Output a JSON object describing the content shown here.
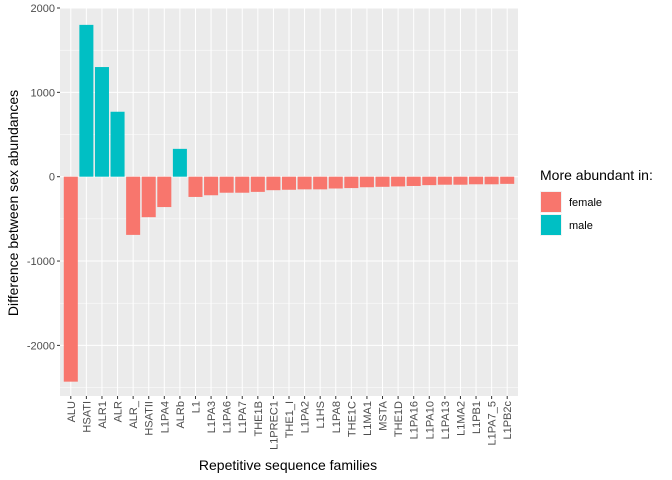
{
  "chart_data": {
    "type": "bar",
    "title": "",
    "xlabel": "Repetitive sequence families",
    "ylabel": "Difference between sex abundances",
    "ylim": [
      -2600,
      2000
    ],
    "yticks": [
      -2000,
      -1000,
      0,
      1000,
      2000
    ],
    "grid": true,
    "legend": {
      "title": "More abundant in:",
      "position": "right",
      "entries": [
        {
          "name": "female",
          "color": "#F8766D"
        },
        {
          "name": "male",
          "color": "#00BFC4"
        }
      ]
    },
    "categories": [
      "ALU",
      "HSATI",
      "ALR1",
      "ALR",
      "ALR_",
      "HSATII",
      "L1PA4",
      "ALRb",
      "L1",
      "L1PA3",
      "L1PA6",
      "L1PA7",
      "THE1B",
      "L1PREC1",
      "THE1_I",
      "L1PA2",
      "L1HS",
      "L1PA8",
      "THE1C",
      "L1MA1",
      "MSTA",
      "THE1D",
      "L1PA16",
      "L1PA10",
      "L1PA13",
      "L1MA2",
      "L1PB1",
      "L1PA7_5",
      "L1PB2c"
    ],
    "values": [
      -2430,
      1800,
      1300,
      770,
      -690,
      -480,
      -360,
      330,
      -240,
      -220,
      -190,
      -190,
      -180,
      -160,
      -155,
      -150,
      -150,
      -140,
      -135,
      -125,
      -120,
      -115,
      -110,
      -100,
      -95,
      -95,
      -90,
      -90,
      -85
    ],
    "groups": [
      "female",
      "male",
      "male",
      "male",
      "female",
      "female",
      "female",
      "male",
      "female",
      "female",
      "female",
      "female",
      "female",
      "female",
      "female",
      "female",
      "female",
      "female",
      "female",
      "female",
      "female",
      "female",
      "female",
      "female",
      "female",
      "female",
      "female",
      "female",
      "female"
    ]
  }
}
